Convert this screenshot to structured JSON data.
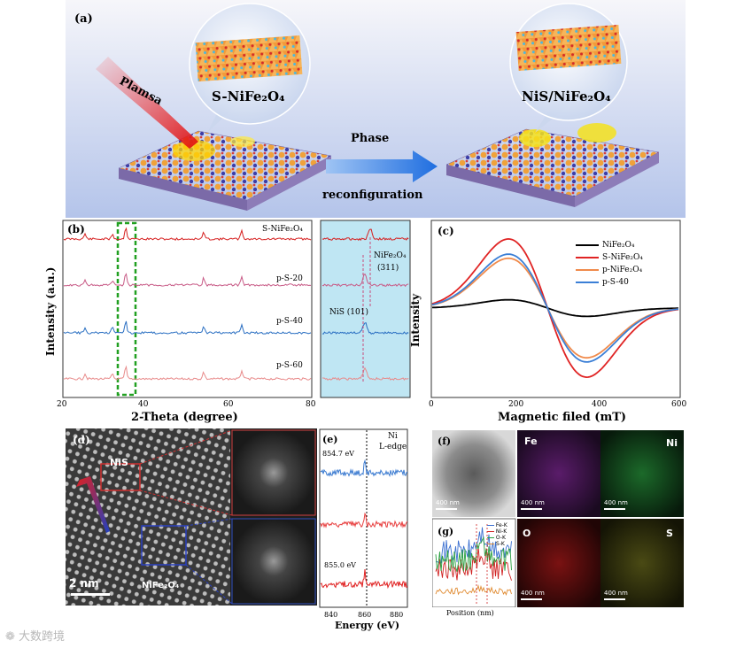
{
  "panel_a": {
    "label": "(a)",
    "plasma_label": "Plamsa",
    "left_bubble_label": "S-NiFe₂O₄",
    "right_bubble_label": "NiS/NiFe₂O₄",
    "arrow_top": "Phase",
    "arrow_bottom": "reconfiguration",
    "colors": {
      "bg_top": "#f4f4f8",
      "bg_bottom": "#b9c8ec",
      "arrow": "#2f7ae6",
      "plasma": "#e02020"
    }
  },
  "panel_b": {
    "label": "(b)",
    "ylabel": "Intensity (a.u.)",
    "xlabel": "2-Theta (degree)",
    "xticks": [
      "20",
      "40",
      "60",
      "80"
    ],
    "series_labels": [
      "S-NiFe₂O₄",
      "p-S-20",
      "p-S-40",
      "p-S-60"
    ],
    "inset_peak1": "NiFe₂O₄",
    "inset_peak1_hkl": "(311)",
    "inset_peak2": "NiS (101)",
    "colors": [
      "#d62020",
      "#c85a86",
      "#2a6fc2",
      "#e88a8a"
    ]
  },
  "panel_c": {
    "label": "(c)",
    "ylabel": "Intensity",
    "xlabel": "Magnetic filed (mT)",
    "xticks": [
      "0",
      "200",
      "400",
      "600"
    ],
    "legend": [
      "NiFe₂O₄",
      "S-NiFe₂O₄",
      "p-NiFe₂O₄",
      "p-S-40"
    ],
    "colors": [
      "#000000",
      "#e02424",
      "#f08a4b",
      "#3b7fd6"
    ]
  },
  "panel_d": {
    "label": "(d)",
    "region1": "NiS",
    "region2": "NiFe₂O₄",
    "scale": "2 nm"
  },
  "panel_e": {
    "label": "(e)",
    "edge_title": "Ni",
    "edge_subtitle": "L-edge",
    "energy_top": "854.7 eV",
    "energy_bottom": "855.0 eV",
    "xlabel": "Energy (eV)",
    "xticks": [
      "840",
      "860",
      "880"
    ]
  },
  "panel_f": {
    "label": "(f)",
    "maps": [
      "Fe",
      "Ni",
      "O",
      "S"
    ],
    "scale_texts": [
      "400 nm",
      "400 nm",
      "400 nm",
      "400 nm",
      "400 nm"
    ]
  },
  "panel_g": {
    "label": "(g)",
    "legend": [
      "Fe-K",
      "Ni-K",
      "O-K",
      "S-K"
    ],
    "xlabel": "Position (nm)"
  },
  "watermark": "大数跨境"
}
